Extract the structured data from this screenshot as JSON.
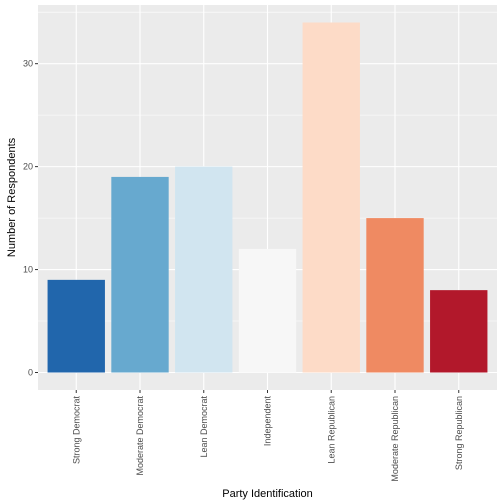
{
  "chart_data": {
    "type": "bar",
    "title": "",
    "xlabel": "Party Identification",
    "ylabel": "Number of Respondents",
    "categories": [
      "Strong Democrat",
      "Moderate Democrat",
      "Lean Democrat",
      "Independent",
      "Lean Republican",
      "Moderate Republican",
      "Strong Republican"
    ],
    "values": [
      9,
      19,
      20,
      12,
      34,
      15,
      8
    ],
    "colors": [
      "#2166ac",
      "#67a9cf",
      "#d1e5f0",
      "#f7f7f7",
      "#fddbc7",
      "#ef8a62",
      "#b2182b"
    ],
    "ylim": [
      -1.7,
      35.7
    ],
    "yticks": [
      0,
      10,
      20,
      30
    ],
    "grid": true,
    "panel_background": "#ebebeb",
    "legend": "none"
  }
}
